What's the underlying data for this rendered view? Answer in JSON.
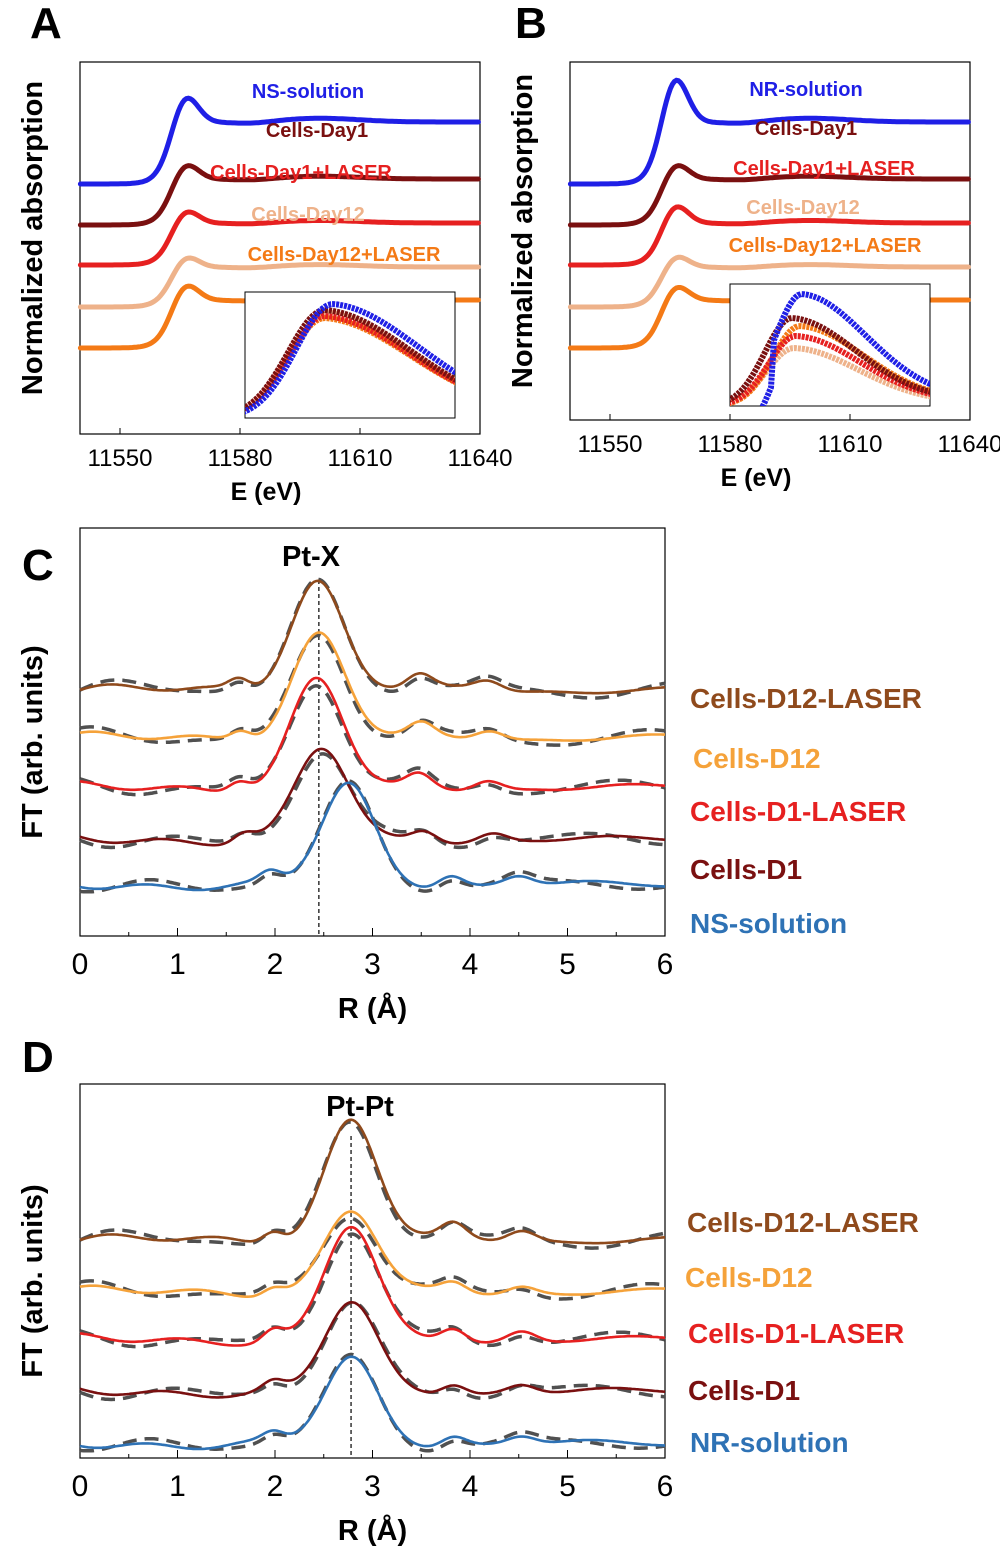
{
  "colors": {
    "blue": "#1f1fe6",
    "darkred": "#7a1010",
    "red": "#e62020",
    "peach": "#eeb28a",
    "orange": "#f47a16",
    "steel": "#2e72b5",
    "brown": "#8f4a1c",
    "lightorange": "#f5a23a",
    "fit": "#505050"
  },
  "chart_data": [
    {
      "panel": "A",
      "type": "line",
      "xlabel": "E (eV)",
      "ylabel": "Normalized absorption",
      "xlim": [
        11540,
        11640
      ],
      "xticks": [
        11550,
        11580,
        11610,
        11640
      ],
      "series": [
        {
          "name": "NS-solution",
          "color": "blue",
          "offset": 4.0
        },
        {
          "name": "Cells-Day1",
          "color": "darkred",
          "offset": 3.0
        },
        {
          "name": "Cells-Day1+LASER",
          "color": "red",
          "offset": 2.0
        },
        {
          "name": "Cells-Day12",
          "color": "peach",
          "offset": 1.0
        },
        {
          "name": "Cells-Day12+LASER",
          "color": "orange",
          "offset": 0.0
        }
      ],
      "inset": true
    },
    {
      "panel": "B",
      "type": "line",
      "xlabel": "E (eV)",
      "ylabel": "Normalized absorption",
      "xlim": [
        11540,
        11640
      ],
      "xticks": [
        11550,
        11580,
        11610,
        11640
      ],
      "series": [
        {
          "name": "NR-solution",
          "color": "blue",
          "offset": 4.0
        },
        {
          "name": "Cells-Day1",
          "color": "darkred",
          "offset": 3.0
        },
        {
          "name": "Cells-Day1+LASER",
          "color": "red",
          "offset": 2.0
        },
        {
          "name": "Cells-Day12",
          "color": "peach",
          "offset": 1.0
        },
        {
          "name": "Cells-Day12+LASER",
          "color": "orange",
          "offset": 0.0
        }
      ],
      "inset": true
    },
    {
      "panel": "C",
      "type": "line",
      "title": "Pt-X",
      "xlabel": "R (Å)",
      "ylabel": "FT (arb. units)",
      "xlim": [
        0,
        6
      ],
      "xticks": [
        0,
        1,
        2,
        3,
        4,
        5,
        6
      ],
      "reference_line_x": 2.45,
      "series": [
        {
          "name": "Cells-D12-LASER",
          "color": "brown",
          "peak": 2.43
        },
        {
          "name": "Cells-D12",
          "color": "lightorange",
          "peak": 2.45
        },
        {
          "name": "Cells-D1-LASER",
          "color": "red",
          "peak": 2.43
        },
        {
          "name": "Cells-D1",
          "color": "darkred",
          "peak": 2.48
        },
        {
          "name": "NS-solution",
          "color": "steel",
          "peak": 2.75
        }
      ]
    },
    {
      "panel": "D",
      "type": "line",
      "title": "Pt-Pt",
      "xlabel": "R (Å)",
      "ylabel": "FT (arb. units)",
      "xlim": [
        0,
        6
      ],
      "xticks": [
        0,
        1,
        2,
        3,
        4,
        5,
        6
      ],
      "reference_line_x": 2.78,
      "series": [
        {
          "name": "Cells-D12-LASER",
          "color": "brown",
          "peak": 2.78
        },
        {
          "name": "Cells-D12",
          "color": "lightorange",
          "peak": 2.78
        },
        {
          "name": "Cells-D1-LASER",
          "color": "red",
          "peak": 2.78
        },
        {
          "name": "Cells-D1",
          "color": "darkred",
          "peak": 2.78
        },
        {
          "name": "NR-solution",
          "color": "steel",
          "peak": 2.78
        }
      ]
    }
  ]
}
